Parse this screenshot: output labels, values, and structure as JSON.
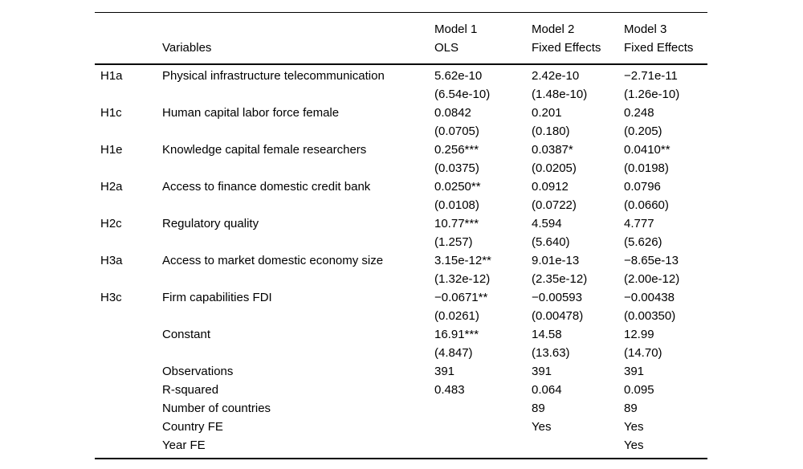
{
  "table": {
    "header": {
      "variables_label": "Variables",
      "models": [
        {
          "name": "Model 1",
          "estimator": "OLS"
        },
        {
          "name": "Model 2",
          "estimator": "Fixed Effects"
        },
        {
          "name": "Model 3",
          "estimator": "Fixed Effects"
        }
      ]
    },
    "coefficient_rows": [
      {
        "hypothesis": "H1a",
        "variable": "Physical infrastructure telecommunication",
        "estimates": [
          "5.62e-10",
          "2.42e-10",
          "−2.71e-11"
        ],
        "std_errors": [
          "(6.54e-10)",
          "(1.48e-10)",
          "(1.26e-10)"
        ]
      },
      {
        "hypothesis": "H1c",
        "variable": "Human capital labor force female",
        "estimates": [
          "0.0842",
          "0.201",
          "0.248"
        ],
        "std_errors": [
          "(0.0705)",
          "(0.180)",
          "(0.205)"
        ]
      },
      {
        "hypothesis": "H1e",
        "variable": "Knowledge capital female researchers",
        "estimates": [
          "0.256***",
          "0.0387*",
          "0.0410**"
        ],
        "std_errors": [
          "(0.0375)",
          "(0.0205)",
          "(0.0198)"
        ]
      },
      {
        "hypothesis": "H2a",
        "variable": "Access to finance domestic credit bank",
        "estimates": [
          "0.0250**",
          "0.0912",
          "0.0796"
        ],
        "std_errors": [
          "(0.0108)",
          "(0.0722)",
          "(0.0660)"
        ]
      },
      {
        "hypothesis": "H2c",
        "variable": "Regulatory quality",
        "estimates": [
          "10.77***",
          "4.594",
          "4.777"
        ],
        "std_errors": [
          "(1.257)",
          "(5.640)",
          "(5.626)"
        ]
      },
      {
        "hypothesis": "H3a",
        "variable": "Access to market domestic economy size",
        "estimates": [
          "3.15e-12**",
          "9.01e-13",
          "−8.65e-13"
        ],
        "std_errors": [
          "(1.32e-12)",
          "(2.35e-12)",
          "(2.00e-12)"
        ]
      },
      {
        "hypothesis": "H3c",
        "variable": "Firm capabilities FDI",
        "estimates": [
          "−0.0671**",
          "−0.00593",
          "−0.00438"
        ],
        "std_errors": [
          "(0.0261)",
          "(0.00478)",
          "(0.00350)"
        ]
      },
      {
        "hypothesis": "",
        "variable": "Constant",
        "estimates": [
          "16.91***",
          "14.58",
          "12.99"
        ],
        "std_errors": [
          "(4.847)",
          "(13.63)",
          "(14.70)"
        ]
      }
    ],
    "summary_rows": [
      {
        "label": "Observations",
        "values": [
          "391",
          "391",
          "391"
        ]
      },
      {
        "label": "R-squared",
        "values": [
          "0.483",
          "0.064",
          "0.095"
        ]
      },
      {
        "label": "Number of countries",
        "values": [
          "",
          "89",
          "89"
        ]
      },
      {
        "label": "Country FE",
        "values": [
          "",
          "Yes",
          "Yes"
        ]
      },
      {
        "label": "Year FE",
        "values": [
          "",
          "",
          "Yes"
        ]
      }
    ]
  }
}
